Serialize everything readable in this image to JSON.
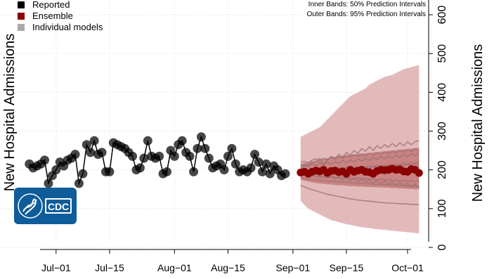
{
  "chart_data": {
    "type": "line",
    "ylabel_left": "New Hospital Admissions",
    "ylabel_right": "New Hospital Admissions",
    "x_ticks": [
      {
        "date": "2023-07-01",
        "label": "Jul−01"
      },
      {
        "date": "2023-07-15",
        "label": "Jul−15"
      },
      {
        "date": "2023-08-01",
        "label": "Aug−01"
      },
      {
        "date": "2023-08-15",
        "label": "Aug−15"
      },
      {
        "date": "2023-09-01",
        "label": "Sep−01"
      },
      {
        "date": "2023-09-15",
        "label": "Sep−15"
      },
      {
        "date": "2023-10-01",
        "label": "Oct−01"
      }
    ],
    "y_ticks": [
      0,
      100,
      200,
      300,
      400,
      500,
      600
    ],
    "xlim": [
      "2023-06-20",
      "2023-10-01"
    ],
    "ylim": [
      0,
      620
    ],
    "grid": true,
    "legend": {
      "position": "top-left",
      "items": [
        {
          "label": "Reported",
          "color": "#000000"
        },
        {
          "label": "Ensemble",
          "color": "#8b0000"
        },
        {
          "label": "Individual models",
          "color": "#aaaaaa"
        }
      ]
    },
    "band_notes": [
      "Inner Bands: 50% Prediction Intervals",
      "Outer Bands: 95% Prediction Intervals"
    ],
    "logo_text": "CDC",
    "reported": {
      "start_date": "2023-06-24",
      "values": [
        215,
        205,
        210,
        215,
        225,
        165,
        185,
        200,
        220,
        210,
        225,
        230,
        240,
        165,
        190,
        265,
        245,
        275,
        240,
        245,
        195,
        195,
        270,
        265,
        260,
        255,
        245,
        235,
        200,
        205,
        230,
        275,
        235,
        230,
        235,
        190,
        195,
        250,
        235,
        265,
        275,
        245,
        235,
        195,
        255,
        285,
        255,
        230,
        205,
        210,
        215,
        200,
        235,
        255,
        215,
        195,
        200,
        195,
        205,
        240,
        220,
        195,
        215,
        190,
        210,
        200,
        185,
        190
      ]
    },
    "forecast": {
      "start_date": "2023-09-03",
      "ensemble_color": "#8b0000",
      "ensemble": [
        193,
        195,
        190,
        195,
        198,
        196,
        200,
        192,
        197,
        198,
        194,
        196,
        190,
        200,
        195,
        198,
        200,
        195,
        194,
        190,
        197,
        200,
        199,
        200,
        203,
        200,
        201,
        196,
        195,
        202,
        200,
        192
      ],
      "band95": {
        "lower": [
          120,
          110,
          100,
          95,
          90,
          85,
          80,
          75,
          70,
          68,
          65,
          62,
          60,
          58,
          56,
          54,
          52,
          51,
          50,
          48,
          47,
          46,
          45,
          44,
          43,
          42,
          41,
          40,
          39,
          38,
          37,
          36
        ],
        "upper": [
          285,
          290,
          295,
          300,
          305,
          310,
          320,
          330,
          340,
          350,
          360,
          370,
          380,
          390,
          395,
          400,
          405,
          410,
          420,
          425,
          430,
          435,
          440,
          442,
          445,
          450,
          455,
          460,
          462,
          465,
          468,
          470
        ]
      },
      "band50": {
        "lower": [
          175,
          172,
          170,
          168,
          166,
          165,
          164,
          163,
          162,
          161,
          160,
          160,
          159,
          158,
          158,
          157,
          157,
          156,
          156,
          155,
          155,
          155,
          154,
          154,
          153,
          153,
          152,
          152,
          151,
          151,
          150,
          150
        ],
        "upper": [
          215,
          218,
          220,
          222,
          224,
          226,
          228,
          230,
          232,
          234,
          235,
          236,
          238,
          239,
          240,
          241,
          242,
          243,
          244,
          245,
          246,
          247,
          248,
          249,
          250,
          251,
          252,
          253,
          254,
          255,
          256,
          257
        ]
      },
      "individual_models": [
        [
          220,
          222,
          218,
          225,
          228,
          224,
          230,
          226,
          232,
          228,
          235,
          230,
          236,
          233,
          238,
          235,
          240,
          236,
          242,
          238,
          244,
          240,
          246,
          242,
          248,
          244,
          250,
          246,
          252,
          248,
          254,
          250
        ],
        [
          200,
          198,
          202,
          199,
          203,
          200,
          204,
          201,
          205,
          202,
          206,
          203,
          207,
          204,
          208,
          205,
          209,
          206,
          210,
          207,
          211,
          208,
          212,
          209,
          213,
          210,
          214,
          211,
          215,
          212,
          216,
          213
        ],
        [
          180,
          178,
          176,
          175,
          174,
          173,
          172,
          171,
          170,
          170,
          169,
          168,
          168,
          167,
          166,
          166,
          165,
          164,
          164,
          163,
          163,
          162,
          162,
          161,
          161,
          160,
          160,
          159,
          159,
          158,
          158,
          157
        ],
        [
          160,
          156,
          152,
          149,
          146,
          143,
          140,
          137,
          135,
          133,
          131,
          129,
          127,
          125,
          124,
          122,
          121,
          120,
          119,
          118,
          117,
          116,
          115,
          114,
          114,
          113,
          113,
          112,
          112,
          111,
          111,
          110
        ],
        [
          205,
          210,
          212,
          218,
          222,
          230,
          215,
          225,
          235,
          228,
          240,
          232,
          245,
          238,
          250,
          242,
          255,
          248,
          260,
          250,
          262,
          255,
          265,
          258,
          268,
          260,
          270,
          262,
          272,
          265,
          273,
          275
        ],
        [
          190,
          192,
          188,
          194,
          190,
          196,
          192,
          198,
          194,
          200,
          196,
          202,
          198,
          204,
          200,
          206,
          202,
          208,
          204,
          210,
          206,
          212,
          208,
          214,
          210,
          216,
          212,
          218,
          214,
          220,
          216,
          222
        ],
        [
          185,
          187,
          183,
          185,
          182,
          184,
          181,
          183,
          180,
          182,
          179,
          181,
          178,
          180,
          177,
          179,
          176,
          178,
          175,
          177,
          174,
          176,
          173,
          175,
          172,
          174,
          171,
          173,
          170,
          172,
          169,
          171
        ],
        [
          210,
          214,
          208,
          216,
          210,
          218,
          212,
          220,
          214,
          222,
          216,
          224,
          218,
          226,
          220,
          228,
          222,
          230,
          224,
          232,
          226,
          234,
          228,
          236,
          230,
          238,
          232,
          240,
          234,
          242,
          236,
          244
        ],
        [
          195,
          190,
          195,
          185,
          190,
          180,
          188,
          178,
          185,
          176,
          183,
          174,
          181,
          172,
          179,
          170,
          177,
          168,
          175,
          166,
          173,
          164,
          171,
          162,
          169,
          160,
          167,
          158,
          165,
          156,
          163,
          154
        ]
      ]
    }
  }
}
